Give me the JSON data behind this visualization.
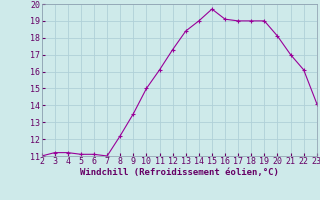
{
  "x": [
    2,
    3,
    4,
    5,
    6,
    7,
    8,
    9,
    10,
    11,
    12,
    13,
    14,
    15,
    16,
    17,
    18,
    19,
    20,
    21,
    22,
    23
  ],
  "y": [
    11,
    11.2,
    11.2,
    11.1,
    11.1,
    11,
    12.2,
    13.5,
    15,
    16.1,
    17.3,
    18.4,
    19,
    19.7,
    19.1,
    19,
    19,
    19,
    18.1,
    17,
    16.1,
    14.1
  ],
  "line_color": "#990099",
  "marker": "+",
  "marker_size": 3.5,
  "marker_lw": 0.8,
  "line_width": 0.8,
  "bg_color": "#ceeaea",
  "grid_color": "#b0d0d8",
  "xlabel": "Windchill (Refroidissement éolien,°C)",
  "xlabel_color": "#660066",
  "xlabel_fontsize": 6.5,
  "tick_fontsize": 6.0,
  "tick_color": "#660066",
  "ylim": [
    11,
    20
  ],
  "xlim": [
    2,
    23
  ],
  "yticks": [
    11,
    12,
    13,
    14,
    15,
    16,
    17,
    18,
    19,
    20
  ],
  "xticks": [
    2,
    3,
    4,
    5,
    6,
    7,
    8,
    9,
    10,
    11,
    12,
    13,
    14,
    15,
    16,
    17,
    18,
    19,
    20,
    21,
    22,
    23
  ],
  "spine_color": "#8899aa"
}
